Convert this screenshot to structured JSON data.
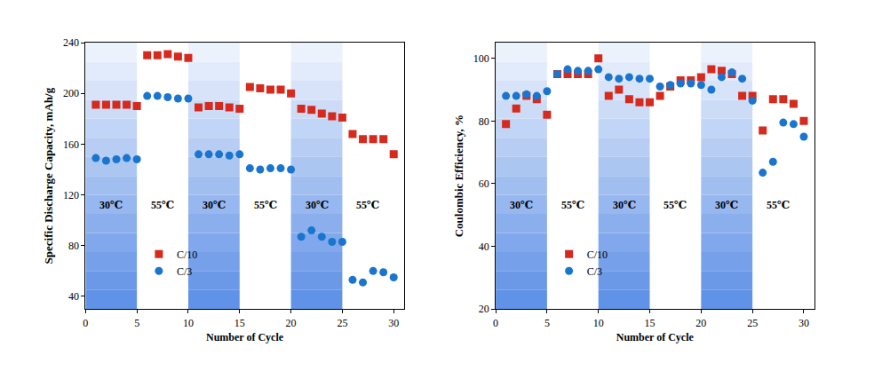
{
  "chart_data": [
    {
      "type": "scatter",
      "x": [
        1,
        2,
        3,
        4,
        5,
        6,
        7,
        8,
        9,
        10,
        11,
        12,
        13,
        14,
        15,
        16,
        17,
        18,
        19,
        20,
        21,
        22,
        23,
        24,
        25,
        26,
        27,
        28,
        29,
        30
      ],
      "series": [
        {
          "name": "C/10",
          "color": "#d62a1e",
          "marker": "square",
          "values": [
            191,
            191,
            191,
            191,
            190,
            230,
            230,
            231,
            229,
            228,
            189,
            190,
            190,
            189,
            188,
            205,
            204,
            203,
            203,
            200,
            188,
            187,
            184,
            182,
            181,
            168,
            164,
            164,
            164,
            152
          ]
        },
        {
          "name": "C/3",
          "color": "#1a75cf",
          "marker": "circle",
          "values": [
            149,
            147,
            148,
            149,
            148,
            198,
            198,
            197,
            196,
            196,
            152,
            152,
            152,
            151,
            152,
            141,
            140,
            141,
            141,
            140,
            87,
            92,
            87,
            83,
            83,
            53,
            51,
            60,
            59,
            55
          ]
        }
      ],
      "x_label": "Number of Cycle",
      "y_label": "Specific Discharge Capacity, mAh/g",
      "xlim": [
        0,
        31
      ],
      "xticks": [
        0,
        5,
        10,
        15,
        20,
        25,
        30
      ],
      "ylim": [
        30,
        240
      ],
      "yticks": [
        40,
        80,
        120,
        160,
        200,
        240
      ],
      "legend": "lower left",
      "bands": [
        {
          "x0": 0,
          "x1": 5,
          "label": "30℃",
          "color": "#5b8ee6"
        },
        {
          "x0": 5,
          "x1": 10,
          "label": "55℃"
        },
        {
          "x0": 10,
          "x1": 15,
          "label": "30℃",
          "color": "#5b8ee6"
        },
        {
          "x0": 15,
          "x1": 20,
          "label": "55℃"
        },
        {
          "x0": 20,
          "x1": 25,
          "label": "30℃",
          "color": "#5b8ee6"
        },
        {
          "x0": 25,
          "x1": 30,
          "label": "55℃"
        }
      ]
    },
    {
      "type": "scatter",
      "x": [
        1,
        2,
        3,
        4,
        5,
        6,
        7,
        8,
        9,
        10,
        11,
        12,
        13,
        14,
        15,
        16,
        17,
        18,
        19,
        20,
        21,
        22,
        23,
        24,
        25,
        26,
        27,
        28,
        29,
        30
      ],
      "series": [
        {
          "name": "C/10",
          "color": "#d62a1e",
          "marker": "square",
          "values": [
            79,
            84,
            88,
            87,
            82,
            95,
            95,
            95,
            95,
            100,
            88,
            90,
            87,
            86,
            86,
            88,
            91,
            93,
            93,
            94,
            96.5,
            96,
            95,
            88,
            88,
            77,
            87,
            87,
            85.5,
            80
          ]
        },
        {
          "name": "C/3",
          "color": "#1a75cf",
          "marker": "circle",
          "values": [
            88,
            88,
            88.5,
            88,
            89.5,
            95,
            96.5,
            96,
            96,
            96.5,
            94,
            93.5,
            94,
            93.5,
            93.5,
            91,
            91.5,
            92,
            92,
            91.5,
            90,
            94,
            95.5,
            93.5,
            86.5,
            63.5,
            67,
            79.5,
            79,
            75
          ]
        }
      ],
      "x_label": "Number of Cycle",
      "y_label": "Coulombic Efficiency, %",
      "xlim": [
        0,
        31
      ],
      "xticks": [
        0,
        5,
        10,
        15,
        20,
        25,
        30
      ],
      "ylim": [
        20,
        105
      ],
      "yticks": [
        20,
        40,
        60,
        80,
        100
      ],
      "legend": "lower left",
      "bands": [
        {
          "x0": 0,
          "x1": 5,
          "label": "30℃",
          "color": "#5b8ee6"
        },
        {
          "x0": 5,
          "x1": 10,
          "label": "55℃"
        },
        {
          "x0": 10,
          "x1": 15,
          "label": "30℃",
          "color": "#5b8ee6"
        },
        {
          "x0": 15,
          "x1": 20,
          "label": "55℃"
        },
        {
          "x0": 20,
          "x1": 25,
          "label": "30℃",
          "color": "#5b8ee6"
        },
        {
          "x0": 25,
          "x1": 30,
          "label": "55℃"
        }
      ]
    }
  ]
}
